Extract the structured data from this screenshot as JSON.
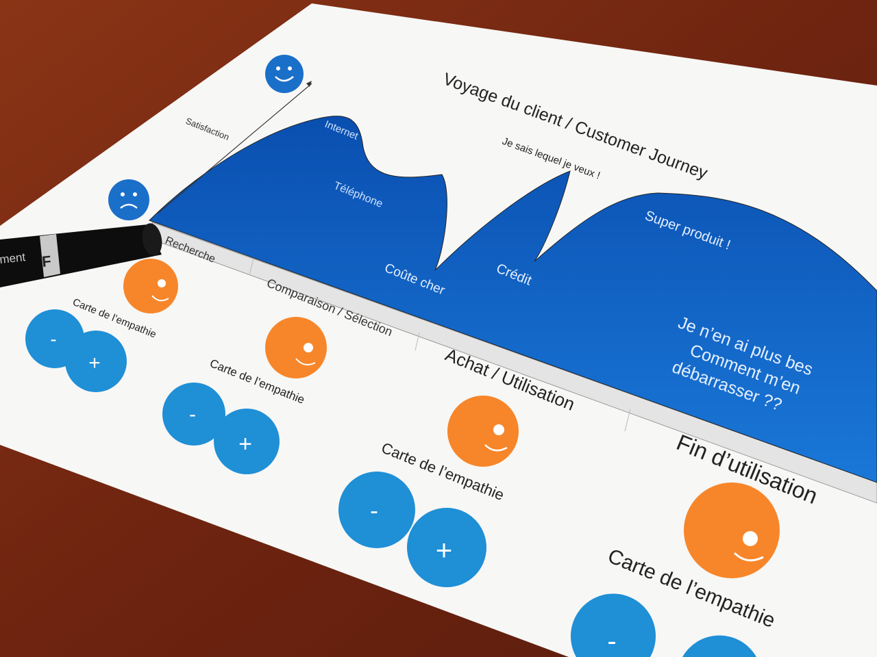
{
  "title": "Voyage du client / Customer Journey",
  "y_axis_label": "Satisfaction",
  "curve_labels": {
    "internet": "Internet",
    "telephone": "Téléphone",
    "coute_cher": "Coûte cher",
    "je_sais": "Je sais lequel je veux !",
    "credit": "Crédit",
    "super_produit": "Super produit !",
    "fin_line1": "Je n’en ai plus bes",
    "fin_line2": "Comment m’en",
    "fin_line3": "débarrasser ??"
  },
  "stages": [
    "Recherche",
    "Comparaison / Sélection",
    "Achat / Utilisation",
    "Fin d’utilisation"
  ],
  "empathy_card_label": "Carte de l’empathie",
  "minus": "-",
  "plus": "+",
  "marker": {
    "cap_letter": "F",
    "body_text": "ment"
  },
  "colors": {
    "wood": "#7a2a12",
    "curve_blue": "#0d5fc0",
    "sticker_blue": "#1f8fd6",
    "sticker_orange": "#f7862a",
    "band_gray": "#e4e4e4"
  },
  "icons": [
    "happy-face-icon",
    "sad-face-icon",
    "axis-arrow-icon"
  ]
}
